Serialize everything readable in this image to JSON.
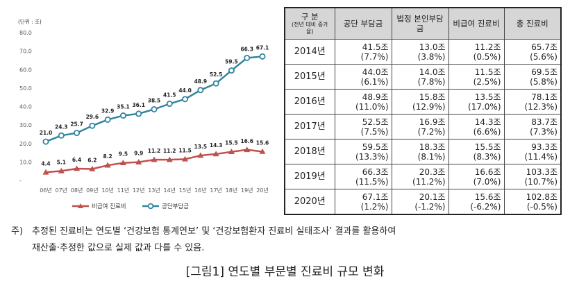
{
  "chart_data": {
    "type": "line",
    "unit_label": "(단위 : 조)",
    "categories": [
      "06년",
      "07년",
      "08년",
      "09년",
      "10년",
      "11년",
      "12년",
      "13년",
      "14년",
      "15년",
      "16년",
      "17년",
      "18년",
      "19년",
      "20년"
    ],
    "ylim": [
      0,
      80
    ],
    "yticks": [
      "80.0",
      "70.0",
      "60.0",
      "50.0",
      "40.0",
      "30.0",
      "20.0",
      "10.0",
      "-"
    ],
    "series": [
      {
        "name": "비급여 진료비",
        "color": "#c0504d",
        "marker": "triangle",
        "values": [
          4.4,
          5.1,
          6.4,
          6.2,
          8.2,
          9.5,
          9.9,
          11.2,
          11.2,
          11.5,
          13.5,
          14.3,
          15.5,
          16.6,
          15.6
        ],
        "labels": [
          "4.4",
          "5.1",
          "6.4",
          "6.2",
          "8.2",
          "9.5",
          "9.9",
          "11.2",
          "11.2",
          "11.5",
          "13.5",
          "14.3",
          "15.5",
          "16.6",
          "15.6"
        ]
      },
      {
        "name": "공단부담금",
        "color": "#31859c",
        "marker": "circle",
        "values": [
          21.0,
          24.3,
          25.7,
          29.6,
          32.9,
          35.1,
          36.1,
          38.5,
          41.5,
          44.0,
          48.9,
          52.5,
          59.5,
          66.3,
          67.1
        ],
        "labels": [
          "21.0",
          "24.3",
          "25.7",
          "29.6",
          "32.9",
          "35.1",
          "36.1",
          "38.5",
          "41.5",
          "44.0",
          "48.9",
          "52.5",
          "59.5",
          "66.3",
          "67.1"
        ]
      }
    ],
    "grid": false,
    "legend": "bottom"
  },
  "table": {
    "headers": [
      {
        "main": "구 분",
        "sub": "(전년 대비 증가율)"
      },
      {
        "main": "공단 부담금",
        "sub": ""
      },
      {
        "main": "법정 본인부담금",
        "sub": ""
      },
      {
        "main": "비급여 진료비",
        "sub": ""
      },
      {
        "main": "총 진료비",
        "sub": ""
      }
    ],
    "rows": [
      {
        "year": "2014년",
        "cells": [
          {
            "v": "41.5조",
            "p": "(7.7%)"
          },
          {
            "v": "13.0조",
            "p": "(3.8%)"
          },
          {
            "v": "11.2조",
            "p": "(0.5%)"
          },
          {
            "v": "65.7조",
            "p": "(5.6%)"
          }
        ]
      },
      {
        "year": "2015년",
        "cells": [
          {
            "v": "44.0조",
            "p": "(6.1%)"
          },
          {
            "v": "14.0조",
            "p": "(7.8%)"
          },
          {
            "v": "11.5조",
            "p": "(2.5%)"
          },
          {
            "v": "69.5조",
            "p": "(5.8%)"
          }
        ]
      },
      {
        "year": "2016년",
        "cells": [
          {
            "v": "48.9조",
            "p": "(11.0%)"
          },
          {
            "v": "15.8조",
            "p": "(12.9%)"
          },
          {
            "v": "13.5조",
            "p": "(17.0%)"
          },
          {
            "v": "78.1조",
            "p": "(12.3%)"
          }
        ]
      },
      {
        "year": "2017년",
        "cells": [
          {
            "v": "52.5조",
            "p": "(7.5%)"
          },
          {
            "v": "16.9조",
            "p": "(7.2%)"
          },
          {
            "v": "14.3조",
            "p": "(6.6%)"
          },
          {
            "v": "83.7조",
            "p": "(7.3%)"
          }
        ]
      },
      {
        "year": "2018년",
        "cells": [
          {
            "v": "59.5조",
            "p": "(13.3%)"
          },
          {
            "v": "18.3조",
            "p": "(8.1%)"
          },
          {
            "v": "15.5조",
            "p": "(8.3%)"
          },
          {
            "v": "93.3조",
            "p": "(11.4%)"
          }
        ]
      },
      {
        "year": "2019년",
        "cells": [
          {
            "v": "66.3조",
            "p": "(11.5%)"
          },
          {
            "v": "20.3조",
            "p": "(11.2%)"
          },
          {
            "v": "16.6조",
            "p": "(7.0%)"
          },
          {
            "v": "103.3조",
            "p": "(10.7%)"
          }
        ]
      },
      {
        "year": "2020년",
        "cells": [
          {
            "v": "67.1조",
            "p": "(1.2%)"
          },
          {
            "v": "20.1조",
            "p": "(-1.2%)"
          },
          {
            "v": "15.6조",
            "p": "(-6.2%)"
          },
          {
            "v": "102.8조",
            "p": "(-0.5%)"
          }
        ]
      }
    ]
  },
  "note": {
    "prefix": "주)",
    "line1": "추정된 진료비는 연도별 ‘건강보험 통계연보’ 및 ‘건강보험환자 진료비 실태조사’ 결과를 활용하여",
    "line2": "재산출·추정한 값으로 실제 값과 다를 수 있음."
  },
  "caption": "[그림1] 연도별 부문별 진료비 규모 변화"
}
